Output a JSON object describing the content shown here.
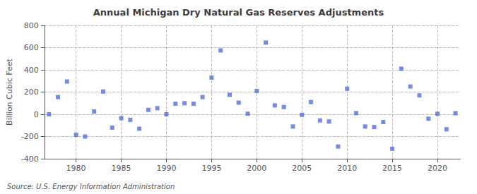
{
  "chart_data": {
    "type": "scatter",
    "title": "Annual Michigan Dry Natural Gas Reserves Adjustments",
    "ylabel": "Billion Cubic Feet",
    "source": "Source: U.S. Energy Information Administration",
    "marker": "square",
    "grid": true,
    "xlim": [
      1976.5,
      2022.5
    ],
    "xticks": [
      1980,
      1985,
      1990,
      1995,
      2000,
      2005,
      2010,
      2015,
      2020
    ],
    "ylim": [
      -400,
      800
    ],
    "yticks": [
      -400,
      -200,
      0,
      200,
      400,
      600,
      800
    ],
    "x": [
      1977,
      1978,
      1979,
      1980,
      1981,
      1982,
      1983,
      1984,
      1985,
      1986,
      1987,
      1988,
      1989,
      1990,
      1991,
      1992,
      1993,
      1994,
      1995,
      1996,
      1997,
      1998,
      1999,
      2000,
      2001,
      2002,
      2003,
      2004,
      2005,
      2006,
      2007,
      2008,
      2009,
      2010,
      2011,
      2012,
      2013,
      2014,
      2015,
      2016,
      2017,
      2018,
      2019,
      2020,
      2021,
      2022
    ],
    "values": [
      0,
      155,
      295,
      -185,
      -200,
      25,
      205,
      -120,
      -35,
      -50,
      -130,
      40,
      55,
      0,
      95,
      100,
      95,
      155,
      330,
      575,
      175,
      105,
      5,
      210,
      645,
      80,
      65,
      -110,
      -5,
      110,
      -55,
      -65,
      -290,
      230,
      10,
      -110,
      -115,
      -70,
      -310,
      410,
      250,
      170,
      -40,
      5,
      -135,
      10
    ]
  }
}
